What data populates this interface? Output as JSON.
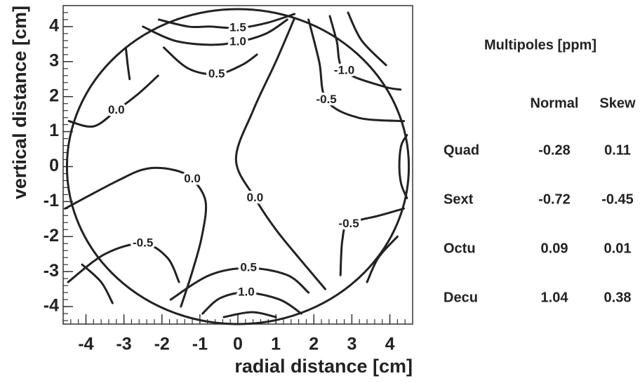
{
  "chart_data": {
    "type": "contour",
    "xlabel": "radial distance [cm]",
    "ylabel": "vertical distance [cm]",
    "xlim": [
      -4.6,
      4.6
    ],
    "ylim": [
      -4.5,
      4.6
    ],
    "xticks": [
      -4,
      -3,
      -2,
      -1,
      0,
      1,
      2,
      3,
      4
    ],
    "yticks": [
      -4,
      -3,
      -2,
      -1,
      0,
      1,
      2,
      3,
      4
    ],
    "aperture_radius": 4.5,
    "contours": [
      {
        "label": "1.5",
        "x": [
          -2.08,
          -1.3,
          -0.74,
          0,
          0.74,
          1.49
        ],
        "y": [
          4.2,
          4.0,
          4.0,
          3.96,
          4.1,
          4.36
        ]
      },
      {
        "label": "1.0",
        "x": [
          -2.5,
          -1.67,
          -0.74,
          0,
          0.74,
          1.3
        ],
        "y": [
          4.0,
          3.6,
          3.48,
          3.56,
          3.8,
          4.2
        ]
      },
      {
        "label": "0.5",
        "x": [
          -1.95,
          -1.3,
          -0.56,
          0.1,
          0.5
        ],
        "y": [
          3.4,
          2.8,
          2.64,
          2.9,
          3.2
        ]
      },
      {
        "x": [
          -2.95,
          -2.9,
          -2.85
        ],
        "y": [
          3.4,
          2.9,
          2.5
        ]
      },
      {
        "label": "0.0",
        "x": [
          -4.45,
          -3.8,
          -3.2,
          -2.6,
          -2.1
        ],
        "y": [
          1.3,
          1.15,
          1.6,
          2.1,
          2.6
        ]
      },
      {
        "label": "0.0",
        "x": [
          1.49,
          1.0,
          0.4,
          -0.05,
          0.45,
          1.0,
          1.6,
          2.3
        ],
        "y": [
          4.24,
          3.0,
          1.6,
          0.2,
          -0.9,
          -1.8,
          -2.6,
          -3.5
        ]
      },
      {
        "label": "0.0",
        "x": [
          -4.55,
          -3.16,
          -2.4,
          -1.67,
          -1.2,
          -0.85,
          -0.95,
          -1.2,
          -1.5
        ],
        "y": [
          -1.2,
          -0.4,
          -0.06,
          -0.1,
          -0.36,
          -1.0,
          -2.0,
          -3.0,
          -4.0
        ]
      },
      {
        "label": "-0.5",
        "x": [
          -4.47,
          -3.5,
          -2.5,
          -1.86,
          -1.55
        ],
        "y": [
          -3.3,
          -2.5,
          -2.2,
          -2.6,
          -3.3
        ]
      },
      {
        "x": [
          -4.1,
          -3.6,
          -3.3
        ],
        "y": [
          -2.8,
          -3.3,
          -3.9
        ]
      },
      {
        "label": "0.5",
        "x": [
          -1.77,
          -0.74,
          0.28,
          1.3,
          1.86
        ],
        "y": [
          -3.8,
          -3.1,
          -2.9,
          -3.1,
          -3.6
        ]
      },
      {
        "label": "1.0",
        "x": [
          -0.93,
          -0.47,
          0.22,
          1.1,
          1.67
        ],
        "y": [
          -4.2,
          -3.76,
          -3.6,
          -3.8,
          -4.2
        ]
      },
      {
        "x": [
          -0.37,
          0.37,
          1.0
        ],
        "y": [
          -4.3,
          -4.16,
          -4.3
        ]
      },
      {
        "label": "-0.5",
        "x": [
          1.86,
          2.14,
          2.33,
          3.16,
          4.37
        ],
        "y": [
          4.2,
          3.0,
          1.9,
          1.4,
          1.3
        ]
      },
      {
        "label": "-1.0",
        "x": [
          2.42,
          2.6,
          2.8,
          3.8,
          4.28
        ],
        "y": [
          4.3,
          3.6,
          2.74,
          2.3,
          2.2
        ]
      },
      {
        "x": [
          2.9,
          3.26,
          3.9
        ],
        "y": [
          4.4,
          3.6,
          2.9
        ]
      },
      {
        "x": [
          4.45,
          4.3,
          4.25,
          4.3,
          4.45
        ],
        "y": [
          0.9,
          0.6,
          0,
          -0.5,
          -0.9
        ]
      },
      {
        "label": "-0.5",
        "x": [
          4.37,
          3.72,
          2.92,
          2.75,
          2.7
        ],
        "y": [
          -1.2,
          -1.4,
          -1.64,
          -2.1,
          -3.1
        ]
      },
      {
        "x": [
          4.2,
          3.7,
          3.4
        ],
        "y": [
          -2.0,
          -2.6,
          -3.3
        ]
      }
    ]
  },
  "table": {
    "title": "Multipoles [ppm]",
    "columns": [
      "Normal",
      "Skew"
    ],
    "rows": [
      {
        "name": "Quad",
        "values": [
          "-0.28",
          "0.11"
        ]
      },
      {
        "name": "Sext",
        "values": [
          "-0.72",
          "-0.45"
        ]
      },
      {
        "name": "Octu",
        "values": [
          "0.09",
          "0.01"
        ]
      },
      {
        "name": "Decu",
        "values": [
          "1.04",
          "0.38"
        ]
      }
    ]
  }
}
